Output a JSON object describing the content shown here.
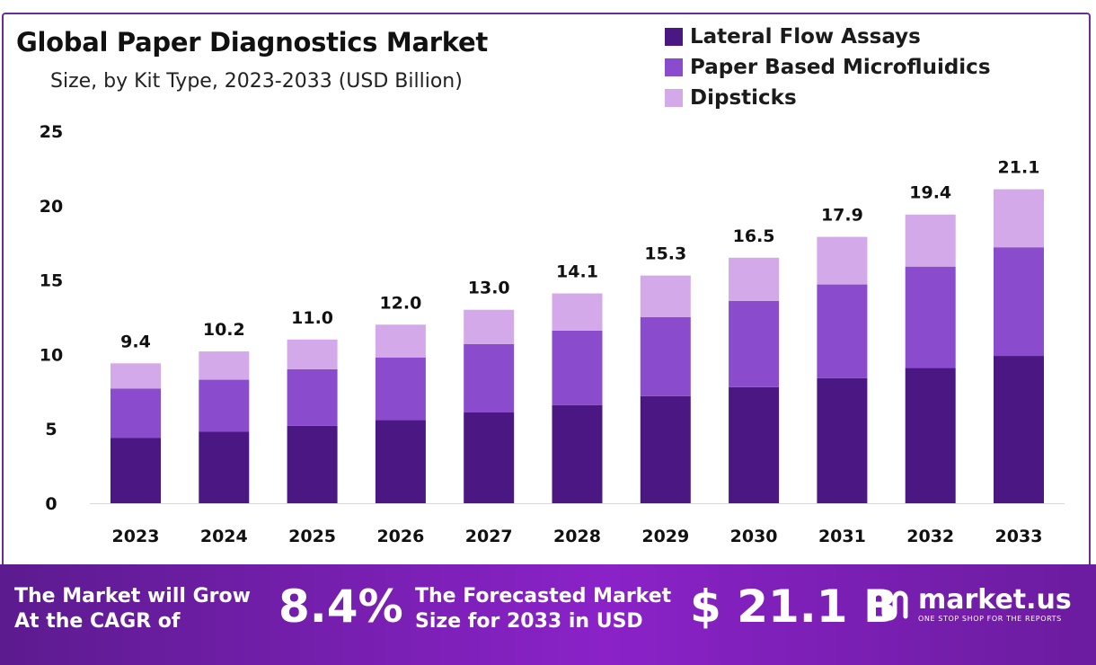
{
  "header": {
    "title": "Global Paper Diagnostics Market",
    "subtitle": "Size, by Kit Type, 2023-2033 (USD Billion)"
  },
  "chart_data": {
    "type": "bar",
    "stacked": true,
    "categories": [
      "2023",
      "2024",
      "2025",
      "2026",
      "2027",
      "2028",
      "2029",
      "2030",
      "2031",
      "2032",
      "2033"
    ],
    "series": [
      {
        "name": "Lateral Flow Assays",
        "color": "#4b1782",
        "values": [
          4.4,
          4.8,
          5.2,
          5.6,
          6.1,
          6.6,
          7.2,
          7.8,
          8.4,
          9.1,
          9.9
        ]
      },
      {
        "name": "Paper Based Microfluidics",
        "color": "#8a4ccc",
        "values": [
          3.3,
          3.5,
          3.8,
          4.2,
          4.6,
          5.0,
          5.3,
          5.8,
          6.3,
          6.8,
          7.3
        ]
      },
      {
        "name": "Dipsticks",
        "color": "#d3a9ea",
        "values": [
          1.7,
          1.9,
          2.0,
          2.2,
          2.3,
          2.5,
          2.8,
          2.9,
          3.2,
          3.5,
          3.9
        ]
      }
    ],
    "totals": [
      "9.4",
      "10.2",
      "11.0",
      "12.0",
      "13.0",
      "14.1",
      "15.3",
      "16.5",
      "17.9",
      "19.4",
      "21.1"
    ],
    "y_ticks": [
      "0",
      "5",
      "10",
      "15",
      "20",
      "25"
    ],
    "ylim": [
      0,
      25
    ],
    "legend_position": "top-right",
    "grid": false
  },
  "footer": {
    "cagr_line1": "The Market will Grow",
    "cagr_line2": "At the CAGR of",
    "cagr_value": "8.4%",
    "forecast_line1": "The Forecasted Market",
    "forecast_line2": "Size for 2033 in USD",
    "forecast_value": "$ 21.1 B",
    "brand_name": "market.us",
    "brand_tagline": "ONE STOP SHOP FOR THE REPORTS"
  }
}
